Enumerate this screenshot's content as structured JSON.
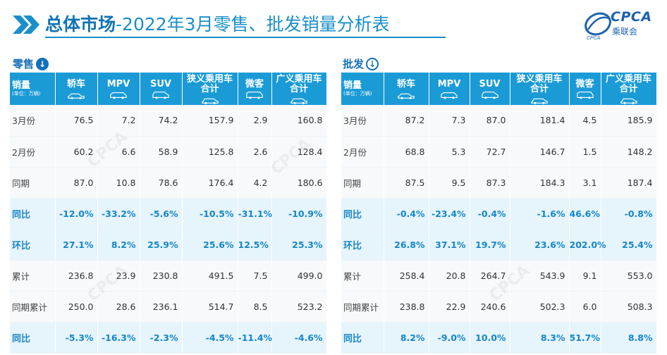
{
  "header": {
    "title_bold": "总体市场",
    "title_rest": "-2022年3月零售、批发销量分析表",
    "logo_text": "CPCA",
    "logo_sub": "乘联会",
    "logo_mark_text": "CPCA"
  },
  "retail": {
    "label": "零售",
    "corner_title": "销量",
    "corner_unit": "(单位：万辆)",
    "columns": [
      "轿车",
      "MPV",
      "SUV",
      "狭义乘用车\n合计",
      "微客",
      "广义乘用车\n合计"
    ],
    "rows": [
      {
        "label": "3月份",
        "type": "norm",
        "values": [
          "76.5",
          "7.2",
          "74.2",
          "157.9",
          "2.9",
          "160.8"
        ]
      },
      {
        "label": "2月份",
        "type": "norm",
        "values": [
          "60.2",
          "6.6",
          "58.9",
          "125.8",
          "2.6",
          "128.4"
        ]
      },
      {
        "label": "同期",
        "type": "norm",
        "values": [
          "87.0",
          "10.8",
          "78.6",
          "176.4",
          "4.2",
          "180.6"
        ]
      },
      {
        "label": "同比",
        "type": "pct",
        "values": [
          "-12.0%",
          "-33.2%",
          "-5.6%",
          "-10.5%",
          "-31.1%",
          "-10.9%"
        ]
      },
      {
        "label": "环比",
        "type": "pct",
        "values": [
          "27.1%",
          "8.2%",
          "25.9%",
          "25.6%",
          "12.5%",
          "25.3%"
        ]
      },
      {
        "label": "累计",
        "type": "norm",
        "values": [
          "236.8",
          "23.9",
          "230.8",
          "491.5",
          "7.5",
          "499.0"
        ]
      },
      {
        "label": "同期累计",
        "type": "norm",
        "values": [
          "250.0",
          "28.6",
          "236.1",
          "514.7",
          "8.5",
          "523.2"
        ]
      },
      {
        "label": "同比",
        "type": "pct",
        "values": [
          "-5.3%",
          "-16.3%",
          "-2.3%",
          "-4.5%",
          "-11.4%",
          "-4.6%"
        ]
      }
    ]
  },
  "wholesale": {
    "label": "批发",
    "corner_title": "销量",
    "corner_unit": "(单位：万辆)",
    "columns": [
      "轿车",
      "MPV",
      "SUV",
      "狭义乘用车\n合计",
      "微客",
      "广义乘用车\n合计"
    ],
    "rows": [
      {
        "label": "3月份",
        "type": "norm",
        "values": [
          "87.2",
          "7.3",
          "87.0",
          "181.4",
          "4.5",
          "185.9"
        ]
      },
      {
        "label": "2月份",
        "type": "norm",
        "values": [
          "68.8",
          "5.3",
          "72.7",
          "146.7",
          "1.5",
          "148.2"
        ]
      },
      {
        "label": "同期",
        "type": "norm",
        "values": [
          "87.5",
          "9.5",
          "87.3",
          "184.3",
          "3.1",
          "187.4"
        ]
      },
      {
        "label": "同比",
        "type": "pct",
        "values": [
          "-0.4%",
          "-23.4%",
          "-0.4%",
          "-1.6%",
          "46.6%",
          "-0.8%"
        ]
      },
      {
        "label": "环比",
        "type": "pct",
        "values": [
          "26.8%",
          "37.1%",
          "19.7%",
          "23.6%",
          "202.0%",
          "25.4%"
        ]
      },
      {
        "label": "累计",
        "type": "norm",
        "values": [
          "258.4",
          "20.8",
          "264.7",
          "543.9",
          "9.1",
          "553.0"
        ]
      },
      {
        "label": "同期累计",
        "type": "norm",
        "values": [
          "238.8",
          "22.9",
          "240.6",
          "502.3",
          "6.0",
          "508.3"
        ]
      },
      {
        "label": "同比",
        "type": "pct",
        "values": [
          "8.2%",
          "-9.0%",
          "10.0%",
          "8.3%",
          "51.7%",
          "8.8%"
        ]
      }
    ]
  },
  "icons": {
    "header_icon": "double-chevron-right-icon",
    "section_icon": "download-circle-icon",
    "column_icons": [
      "sedan-icon",
      "mpv-icon",
      "suv-icon",
      "car-icon",
      "minivan-icon",
      "car-icon"
    ]
  },
  "colors": {
    "accent": "#1b9bd6",
    "title": "#1a8fc9",
    "pct_text": "#1587c8",
    "pct_row_bg": "#e6f4fb"
  }
}
